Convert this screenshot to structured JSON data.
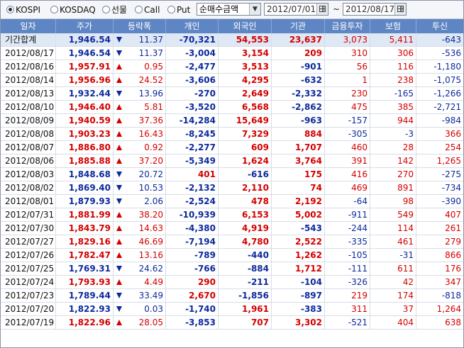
{
  "market_options": [
    {
      "label": "KOSPI",
      "selected": true
    },
    {
      "label": "KOSDAQ",
      "selected": false
    },
    {
      "label": "선물",
      "selected": false
    },
    {
      "label": "Call",
      "selected": false
    },
    {
      "label": "Put",
      "selected": false
    }
  ],
  "view_select": {
    "value": "순매수금액"
  },
  "date_range": {
    "from": "2012/07/01",
    "separator": "~",
    "to": "2012/08/17"
  },
  "columns": [
    "일자",
    "주가",
    "등락폭",
    "개인",
    "외국인",
    "기관",
    "금융투자",
    "보험",
    "투신"
  ],
  "colors": {
    "header_bg": "#5f86c4",
    "up": "#d40000",
    "down": "#0d2a9c",
    "total_row_bg": "#dfe8f5"
  },
  "rows": [
    {
      "date": "기간합계",
      "price": "1,946.54",
      "dir": "down",
      "change": "11.37",
      "individual": "-70,321",
      "foreign": "54,553",
      "institution": "23,637",
      "finance": "3,073",
      "insurance": "5,411",
      "trust": "-643",
      "total": true
    },
    {
      "date": "2012/08/17",
      "price": "1,946.54",
      "dir": "down",
      "change": "11.37",
      "individual": "-3,004",
      "foreign": "3,154",
      "institution": "209",
      "finance": "310",
      "insurance": "306",
      "trust": "-536"
    },
    {
      "date": "2012/08/16",
      "price": "1,957.91",
      "dir": "up",
      "change": "0.95",
      "individual": "-2,477",
      "foreign": "3,513",
      "institution": "-901",
      "finance": "56",
      "insurance": "116",
      "trust": "-1,180"
    },
    {
      "date": "2012/08/14",
      "price": "1,956.96",
      "dir": "up",
      "change": "24.52",
      "individual": "-3,606",
      "foreign": "4,295",
      "institution": "-632",
      "finance": "1",
      "insurance": "238",
      "trust": "-1,075"
    },
    {
      "date": "2012/08/13",
      "price": "1,932.44",
      "dir": "down",
      "change": "13.96",
      "individual": "-270",
      "foreign": "2,649",
      "institution": "-2,332",
      "finance": "230",
      "insurance": "-165",
      "trust": "-1,266"
    },
    {
      "date": "2012/08/10",
      "price": "1,946.40",
      "dir": "up",
      "change": "5.81",
      "individual": "-3,520",
      "foreign": "6,568",
      "institution": "-2,862",
      "finance": "475",
      "insurance": "385",
      "trust": "-2,721"
    },
    {
      "date": "2012/08/09",
      "price": "1,940.59",
      "dir": "up",
      "change": "37.36",
      "individual": "-14,284",
      "foreign": "15,649",
      "institution": "-963",
      "finance": "-157",
      "insurance": "944",
      "trust": "-984"
    },
    {
      "date": "2012/08/08",
      "price": "1,903.23",
      "dir": "up",
      "change": "16.43",
      "individual": "-8,245",
      "foreign": "7,329",
      "institution": "884",
      "finance": "-305",
      "insurance": "-3",
      "trust": "366"
    },
    {
      "date": "2012/08/07",
      "price": "1,886.80",
      "dir": "up",
      "change": "0.92",
      "individual": "-2,277",
      "foreign": "609",
      "institution": "1,707",
      "finance": "460",
      "insurance": "28",
      "trust": "254"
    },
    {
      "date": "2012/08/06",
      "price": "1,885.88",
      "dir": "up",
      "change": "37.20",
      "individual": "-5,349",
      "foreign": "1,624",
      "institution": "3,764",
      "finance": "391",
      "insurance": "142",
      "trust": "1,265"
    },
    {
      "date": "2012/08/03",
      "price": "1,848.68",
      "dir": "down",
      "change": "20.72",
      "individual": "401",
      "foreign": "-616",
      "institution": "175",
      "finance": "416",
      "insurance": "270",
      "trust": "-275"
    },
    {
      "date": "2012/08/02",
      "price": "1,869.40",
      "dir": "down",
      "change": "10.53",
      "individual": "-2,132",
      "foreign": "2,110",
      "institution": "74",
      "finance": "469",
      "insurance": "891",
      "trust": "-734"
    },
    {
      "date": "2012/08/01",
      "price": "1,879.93",
      "dir": "down",
      "change": "2.06",
      "individual": "-2,524",
      "foreign": "478",
      "institution": "2,192",
      "finance": "-64",
      "insurance": "98",
      "trust": "-390"
    },
    {
      "date": "2012/07/31",
      "price": "1,881.99",
      "dir": "up",
      "change": "38.20",
      "individual": "-10,939",
      "foreign": "6,153",
      "institution": "5,002",
      "finance": "-911",
      "insurance": "549",
      "trust": "407"
    },
    {
      "date": "2012/07/30",
      "price": "1,843.79",
      "dir": "up",
      "change": "14.63",
      "individual": "-4,380",
      "foreign": "4,919",
      "institution": "-543",
      "finance": "-244",
      "insurance": "114",
      "trust": "261"
    },
    {
      "date": "2012/07/27",
      "price": "1,829.16",
      "dir": "up",
      "change": "46.69",
      "individual": "-7,194",
      "foreign": "4,780",
      "institution": "2,522",
      "finance": "-335",
      "insurance": "461",
      "trust": "279"
    },
    {
      "date": "2012/07/26",
      "price": "1,782.47",
      "dir": "up",
      "change": "13.16",
      "individual": "-789",
      "foreign": "-440",
      "institution": "1,262",
      "finance": "-105",
      "insurance": "-31",
      "trust": "866"
    },
    {
      "date": "2012/07/25",
      "price": "1,769.31",
      "dir": "down",
      "change": "24.62",
      "individual": "-766",
      "foreign": "-884",
      "institution": "1,712",
      "finance": "-111",
      "insurance": "611",
      "trust": "176"
    },
    {
      "date": "2012/07/24",
      "price": "1,793.93",
      "dir": "up",
      "change": "4.49",
      "individual": "290",
      "foreign": "-211",
      "institution": "-104",
      "finance": "-326",
      "insurance": "42",
      "trust": "347"
    },
    {
      "date": "2012/07/23",
      "price": "1,789.44",
      "dir": "down",
      "change": "33.49",
      "individual": "2,670",
      "foreign": "-1,856",
      "institution": "-897",
      "finance": "219",
      "insurance": "174",
      "trust": "-818"
    },
    {
      "date": "2012/07/20",
      "price": "1,822.93",
      "dir": "down",
      "change": "0.03",
      "individual": "-1,740",
      "foreign": "1,961",
      "institution": "-383",
      "finance": "311",
      "insurance": "37",
      "trust": "1,264"
    },
    {
      "date": "2012/07/19",
      "price": "1,822.96",
      "dir": "up",
      "change": "28.05",
      "individual": "-3,853",
      "foreign": "707",
      "institution": "3,302",
      "finance": "-521",
      "insurance": "404",
      "trust": "638"
    }
  ]
}
